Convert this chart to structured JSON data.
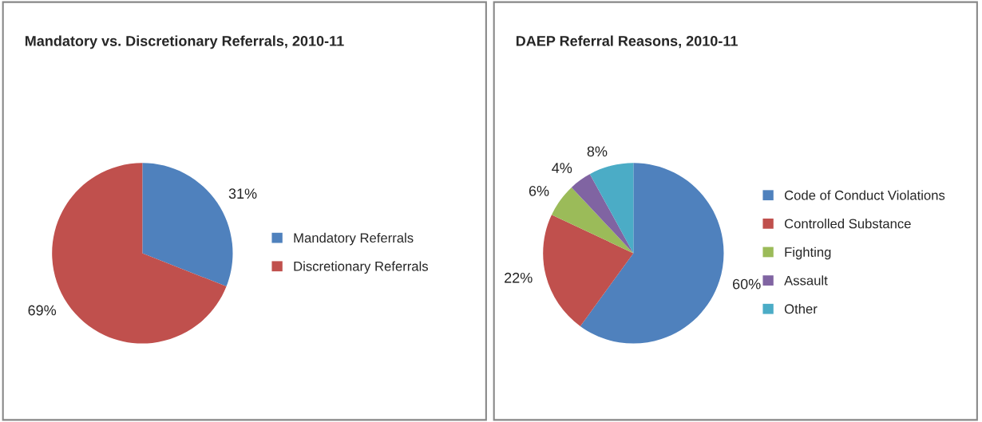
{
  "chart_data": [
    {
      "type": "pie",
      "title": "Mandatory vs. Discretionary Referrals, 2010-11",
      "categories": [
        "Mandatory Referrals",
        "Discretionary Referrals"
      ],
      "values": [
        31,
        69
      ],
      "value_labels": [
        "31%",
        "69%"
      ],
      "colors": [
        "#4f81bd",
        "#c0504d"
      ],
      "legend": "right"
    },
    {
      "type": "pie",
      "title": "DAEP Referral Reasons, 2010-11",
      "categories": [
        "Code of Conduct Violations",
        "Controlled Substance",
        "Fighting",
        "Assault",
        "Other"
      ],
      "values": [
        60,
        22,
        6,
        4,
        8
      ],
      "value_labels": [
        "60%",
        "22%",
        "6%",
        "4%",
        "8%"
      ],
      "colors": [
        "#4f81bd",
        "#c0504d",
        "#9bbb59",
        "#8064a2",
        "#4bacc6"
      ],
      "legend": "right"
    }
  ]
}
